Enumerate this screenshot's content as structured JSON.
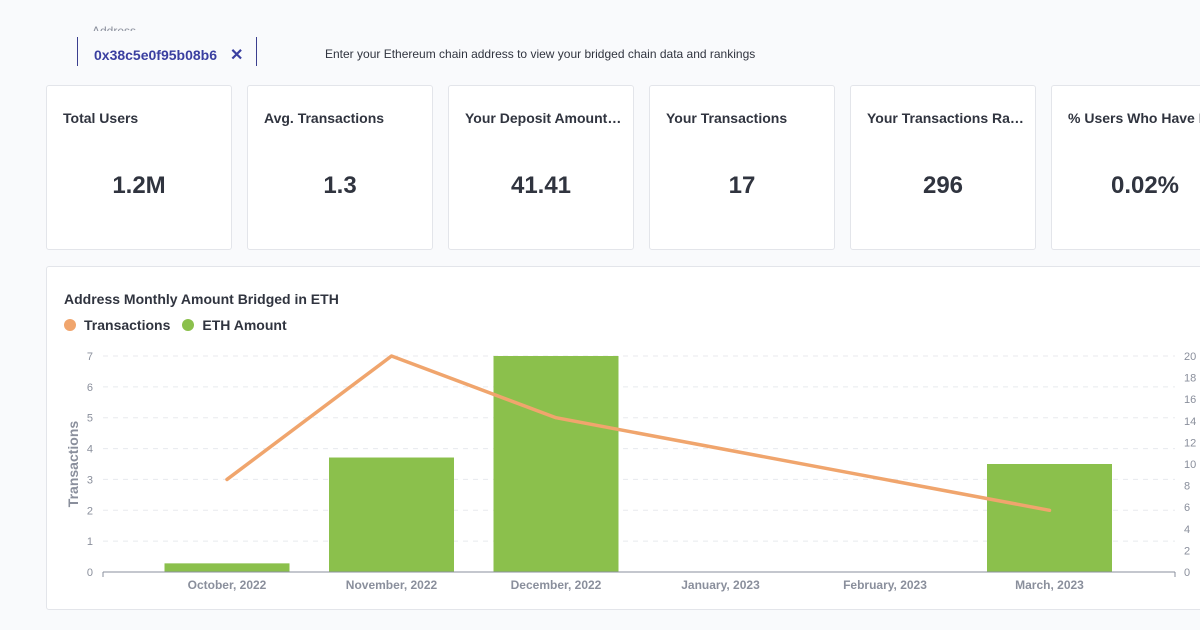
{
  "address": {
    "label": "Address",
    "value": "0x38c5e0f95b08b6",
    "clear_icon": "✕",
    "hint": "Enter your Ethereum chain address to view your bridged chain data and rankings"
  },
  "cards": [
    {
      "title": "Total Users",
      "value": "1.2M"
    },
    {
      "title": "Avg. Transactions",
      "value": "1.3"
    },
    {
      "title": "Your Deposit Amount (ETH)",
      "value": "41.41"
    },
    {
      "title": "Your Transactions",
      "value": "17"
    },
    {
      "title": "Your Transactions Rank",
      "value": "296"
    },
    {
      "title": "% Users Who Have Bridged",
      "value": "0.02%"
    }
  ],
  "colors": {
    "transactions": "#f0a56d",
    "eth_amount": "#8bc04c",
    "accent": "#3a3fa0"
  },
  "chart_data": {
    "type": "bar",
    "title": "Address Monthly Amount Bridged in ETH",
    "categories": [
      "October, 2022",
      "November, 2022",
      "December, 2022",
      "January, 2023",
      "February, 2023",
      "March, 2023"
    ],
    "series": [
      {
        "name": "ETH Amount",
        "type": "bar",
        "axis": "right",
        "values": [
          0.8,
          10.6,
          20,
          0,
          0,
          10
        ]
      },
      {
        "name": "Transactions",
        "type": "line",
        "axis": "left",
        "values": [
          3,
          7,
          5,
          null,
          null,
          2
        ]
      }
    ],
    "ylabel": "Transactions",
    "ylim_left": [
      0,
      7
    ],
    "yticks_left": [
      0,
      1,
      2,
      3,
      4,
      5,
      6,
      7
    ],
    "ylim_right": [
      0,
      20
    ],
    "yticks_right": [
      0,
      2,
      4,
      6,
      8,
      10,
      12,
      14,
      16,
      18,
      20
    ],
    "grid": true,
    "legend": "top-left"
  }
}
